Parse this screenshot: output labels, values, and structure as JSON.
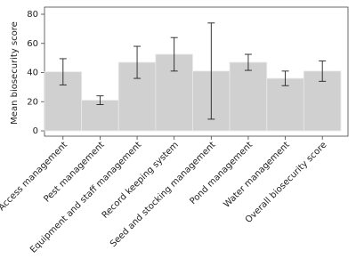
{
  "chart_data": {
    "type": "bar",
    "y_label": "Mean biosecurity score",
    "categories": [
      "Access management",
      "Pest management",
      "Equipment and staff management",
      "Record keeping system",
      "Seed and stocking management",
      "Pond management",
      "Water management",
      "Overall biosecurity score"
    ],
    "values": [
      40.5,
      21,
      47,
      52.5,
      41,
      47,
      36,
      41
    ],
    "errors": [
      9,
      3,
      11,
      11.5,
      33,
      5.5,
      5,
      7
    ],
    "color": "#d0d0d0",
    "ylim": [
      0,
      80
    ],
    "yticks": [
      0,
      20,
      40,
      60,
      80
    ]
  }
}
